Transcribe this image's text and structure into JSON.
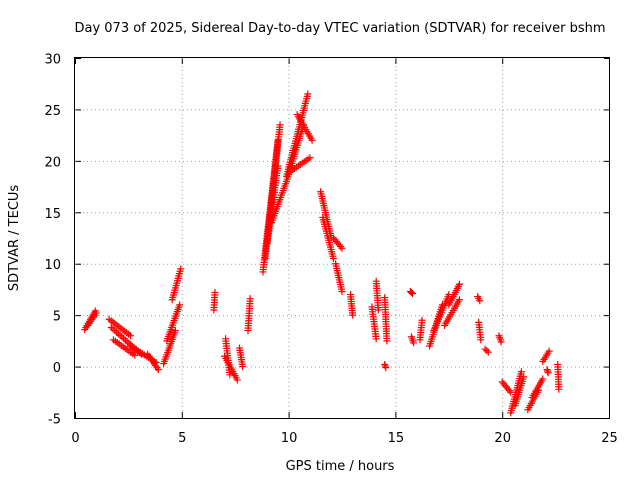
{
  "chart_data": {
    "type": "scatter",
    "title": "Day 073 of 2025, Sidereal Day-to-day VTEC variation (SDTVAR) for receiver bshm",
    "xlabel": "GPS time / hours",
    "ylabel": "SDTVAR / TECUs",
    "xlim": [
      0,
      25
    ],
    "ylim": [
      -5,
      30
    ],
    "xticks": [
      "0",
      "5",
      "10",
      "15",
      "20",
      "25"
    ],
    "yticks": [
      "-5",
      "0",
      "5",
      "10",
      "15",
      "20",
      "25",
      "30"
    ],
    "grid": true,
    "marker": "plus",
    "color": "#ff0000",
    "series": [
      {
        "name": "SDTVAR",
        "segments": [
          {
            "x0": 0.45,
            "x1": 0.95,
            "y0": 3.6,
            "y1": 5.4
          },
          {
            "x0": 0.6,
            "x1": 1.0,
            "y0": 4.0,
            "y1": 5.2
          },
          {
            "x0": 1.6,
            "x1": 2.6,
            "y0": 4.6,
            "y1": 3.0
          },
          {
            "x0": 1.7,
            "x1": 3.1,
            "y0": 3.8,
            "y1": 1.2
          },
          {
            "x0": 1.8,
            "x1": 2.8,
            "y0": 2.6,
            "y1": 1.1
          },
          {
            "x0": 2.6,
            "x1": 3.8,
            "y0": 2.0,
            "y1": 0.4
          },
          {
            "x0": 3.4,
            "x1": 3.9,
            "y0": 1.2,
            "y1": -0.3
          },
          {
            "x0": 4.15,
            "x1": 4.7,
            "y0": 0.3,
            "y1": 3.5
          },
          {
            "x0": 4.3,
            "x1": 4.9,
            "y0": 2.5,
            "y1": 6.0
          },
          {
            "x0": 4.55,
            "x1": 4.95,
            "y0": 6.5,
            "y1": 9.5
          },
          {
            "x0": 6.5,
            "x1": 6.55,
            "y0": 5.5,
            "y1": 7.2
          },
          {
            "x0": 7.05,
            "x1": 7.25,
            "y0": 2.7,
            "y1": -0.8
          },
          {
            "x0": 7.0,
            "x1": 7.6,
            "y0": 1.0,
            "y1": -1.3
          },
          {
            "x0": 7.7,
            "x1": 7.85,
            "y0": 1.8,
            "y1": 0.0
          },
          {
            "x0": 8.1,
            "x1": 8.2,
            "y0": 3.5,
            "y1": 6.6
          },
          {
            "x0": 8.8,
            "x1": 9.5,
            "y0": 9.2,
            "y1": 22.0
          },
          {
            "x0": 8.9,
            "x1": 9.6,
            "y0": 10.5,
            "y1": 23.5
          },
          {
            "x0": 9.0,
            "x1": 9.5,
            "y0": 12.0,
            "y1": 19.5
          },
          {
            "x0": 9.2,
            "x1": 9.9,
            "y0": 14.0,
            "y1": 18.0
          },
          {
            "x0": 9.9,
            "x1": 10.9,
            "y0": 18.5,
            "y1": 26.5
          },
          {
            "x0": 9.9,
            "x1": 10.7,
            "y0": 18.0,
            "y1": 23.5
          },
          {
            "x0": 10.1,
            "x1": 11.0,
            "y0": 19.0,
            "y1": 20.3
          },
          {
            "x0": 10.4,
            "x1": 11.1,
            "y0": 24.5,
            "y1": 22.0
          },
          {
            "x0": 11.5,
            "x1": 12.0,
            "y0": 17.0,
            "y1": 12.5
          },
          {
            "x0": 11.6,
            "x1": 12.1,
            "y0": 14.5,
            "y1": 10.5
          },
          {
            "x0": 12.1,
            "x1": 12.5,
            "y0": 12.5,
            "y1": 11.5
          },
          {
            "x0": 12.2,
            "x1": 12.5,
            "y0": 10.0,
            "y1": 7.3
          },
          {
            "x0": 12.9,
            "x1": 13.0,
            "y0": 7.0,
            "y1": 5.0
          },
          {
            "x0": 13.9,
            "x1": 14.1,
            "y0": 5.8,
            "y1": 2.7
          },
          {
            "x0": 14.1,
            "x1": 14.2,
            "y0": 8.3,
            "y1": 5.5
          },
          {
            "x0": 14.5,
            "x1": 14.6,
            "y0": 6.7,
            "y1": 2.5
          },
          {
            "x0": 14.5,
            "x1": 14.55,
            "y0": 0.2,
            "y1": -0.1
          },
          {
            "x0": 15.7,
            "x1": 15.8,
            "y0": 7.3,
            "y1": 7.1
          },
          {
            "x0": 15.75,
            "x1": 15.85,
            "y0": 2.9,
            "y1": 2.3
          },
          {
            "x0": 16.15,
            "x1": 16.25,
            "y0": 2.6,
            "y1": 4.5
          },
          {
            "x0": 16.6,
            "x1": 17.2,
            "y0": 2.0,
            "y1": 6.0
          },
          {
            "x0": 16.8,
            "x1": 17.5,
            "y0": 3.5,
            "y1": 7.0
          },
          {
            "x0": 17.3,
            "x1": 18.0,
            "y0": 4.0,
            "y1": 6.5
          },
          {
            "x0": 17.5,
            "x1": 18.0,
            "y0": 6.0,
            "y1": 8.0
          },
          {
            "x0": 18.85,
            "x1": 18.95,
            "y0": 6.8,
            "y1": 6.4
          },
          {
            "x0": 18.9,
            "x1": 19.0,
            "y0": 4.3,
            "y1": 2.6
          },
          {
            "x0": 19.2,
            "x1": 19.35,
            "y0": 1.7,
            "y1": 1.4
          },
          {
            "x0": 19.85,
            "x1": 19.95,
            "y0": 3.0,
            "y1": 2.4
          },
          {
            "x0": 20.0,
            "x1": 20.4,
            "y0": -1.5,
            "y1": -2.5
          },
          {
            "x0": 20.4,
            "x1": 20.9,
            "y0": -4.5,
            "y1": -0.5
          },
          {
            "x0": 20.6,
            "x1": 21.0,
            "y0": -3.8,
            "y1": -1.0
          },
          {
            "x0": 21.2,
            "x1": 21.7,
            "y0": -4.2,
            "y1": -2.3
          },
          {
            "x0": 21.4,
            "x1": 21.9,
            "y0": -3.0,
            "y1": -1.2
          },
          {
            "x0": 21.9,
            "x1": 22.2,
            "y0": 0.5,
            "y1": 1.5
          },
          {
            "x0": 22.1,
            "x1": 22.15,
            "y0": -0.3,
            "y1": -0.6
          },
          {
            "x0": 22.6,
            "x1": 22.65,
            "y0": 0.2,
            "y1": -2.2
          }
        ]
      }
    ]
  }
}
